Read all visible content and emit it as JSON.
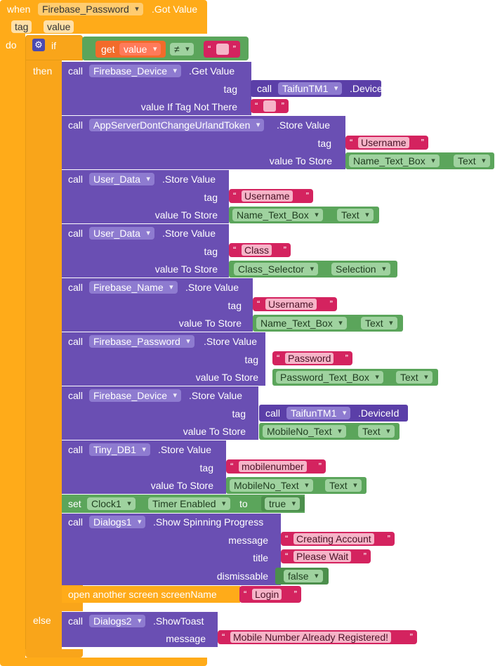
{
  "event": {
    "when_label": "when",
    "component": "Firebase_Password",
    "event_name": ".Got Value",
    "params": [
      "tag",
      "value"
    ],
    "do_label": "do"
  },
  "if_block": {
    "if_label": "if",
    "then_label": "then",
    "else_label": "else",
    "get_label": "get",
    "get_var": "value",
    "op": "≠",
    "empty_text": ""
  },
  "b1": {
    "call": "call",
    "component": "Firebase_Device",
    "method": ".Get Value",
    "tag_label": "tag",
    "tag_call": "call",
    "tag_component": "TaifunTM1",
    "tag_method": ".DeviceId",
    "val_label": "value If Tag Not There",
    "val_text": ""
  },
  "b2": {
    "call": "call",
    "component": "AppServerDontChangeUrlandToken",
    "method": ".Store Value",
    "tag_label": "tag",
    "tag_text": "Username",
    "val_label": "value To Store",
    "val_comp": "Name_Text_Box",
    "val_prop": "Text"
  },
  "b3": {
    "call": "call",
    "component": "User_Data",
    "method": ".Store Value",
    "tag_label": "tag",
    "tag_text": "Username",
    "val_label": "value To Store",
    "val_comp": "Name_Text_Box",
    "val_prop": "Text"
  },
  "b4": {
    "call": "call",
    "component": "User_Data",
    "method": ".Store Value",
    "tag_label": "tag",
    "tag_text": "Class",
    "val_label": "value To Store",
    "val_comp": "Class_Selector",
    "val_prop": "Selection"
  },
  "b5": {
    "call": "call",
    "component": "Firebase_Name",
    "method": ".Store Value",
    "tag_label": "tag",
    "tag_text": "Username",
    "val_label": "value To Store",
    "val_comp": "Name_Text_Box",
    "val_prop": "Text"
  },
  "b6": {
    "call": "call",
    "component": "Firebase_Password",
    "method": ".Store Value",
    "tag_label": "tag",
    "tag_text": "Password",
    "val_label": "value To Store",
    "val_comp": "Password_Text_Box",
    "val_prop": "Text"
  },
  "b7": {
    "call": "call",
    "component": "Firebase_Device",
    "method": ".Store Value",
    "tag_label": "tag",
    "tag_call": "call",
    "tag_component": "TaifunTM1",
    "tag_method": ".DeviceId",
    "val_label": "value To Store",
    "val_comp": "MobileNo_Text",
    "val_prop": "Text"
  },
  "b8": {
    "call": "call",
    "component": "Tiny_DB1",
    "method": ".Store Value",
    "tag_label": "tag",
    "tag_text": "mobilenumber",
    "val_label": "value To Store",
    "val_comp": "MobileNo_Text",
    "val_prop": "Text"
  },
  "b9": {
    "set": "set",
    "component": "Clock1",
    "prop": "Timer Enabled",
    "to": "to",
    "value": "true"
  },
  "b10": {
    "call": "call",
    "component": "Dialogs1",
    "method": ".Show Spinning Progress",
    "msg_label": "message",
    "msg_text": "Creating Account",
    "title_label": "title",
    "title_text": "Please Wait",
    "dis_label": "dismissable",
    "dis_value": "false"
  },
  "b11": {
    "label": "open another screen  screenName",
    "screen": "Login"
  },
  "b12": {
    "call": "call",
    "component": "Dialogs2",
    "method": ".ShowToast",
    "msg_label": "message",
    "msg_text": "Mobile Number Already Registered!"
  },
  "colors": {
    "event": "#ffab19",
    "procedure": "#6a4fb3",
    "component_green": "#5ba55b",
    "text": "#d4235f",
    "gear": "#4a4ab0"
  }
}
